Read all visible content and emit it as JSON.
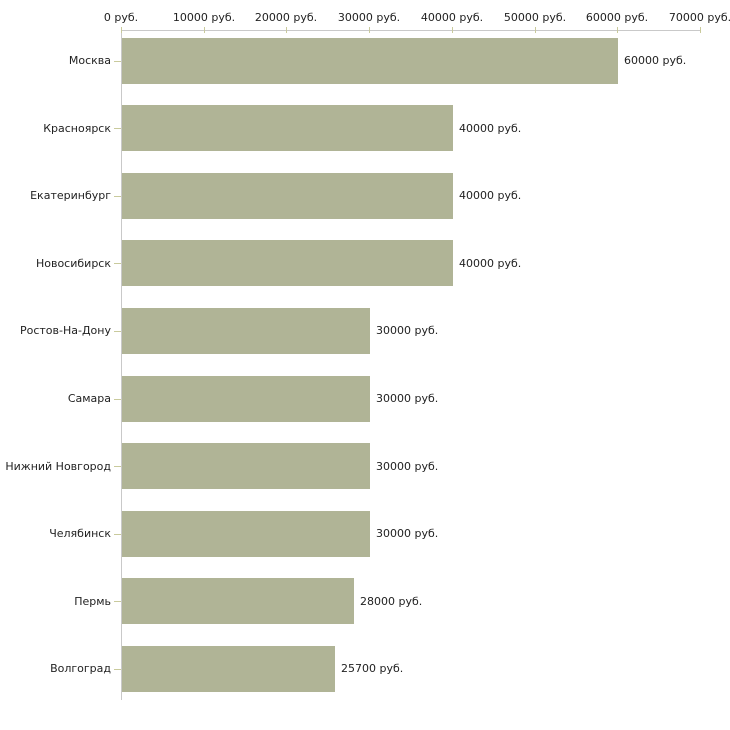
{
  "chart_data": {
    "type": "bar",
    "orientation": "horizontal",
    "title": "",
    "categories": [
      "Москва",
      "Красноярск",
      "Екатеринбург",
      "Новосибирск",
      "Ростов-На-Дону",
      "Самара",
      "Нижний Новгород",
      "Челябинск",
      "Пермь",
      "Волгоград"
    ],
    "values": [
      60000,
      40000,
      40000,
      40000,
      30000,
      30000,
      30000,
      30000,
      28000,
      25700
    ],
    "value_labels": [
      "60000 руб.",
      "40000 руб.",
      "40000 руб.",
      "40000 руб.",
      "30000 руб.",
      "30000 руб.",
      "30000 руб.",
      "30000 руб.",
      "28000 руб.",
      "25700 руб."
    ],
    "unit": "руб.",
    "x_axis": {
      "position": "top",
      "min": 0,
      "max": 70000,
      "ticks": [
        0,
        10000,
        20000,
        30000,
        40000,
        50000,
        60000,
        70000
      ],
      "tick_labels": [
        "0 руб.",
        "10000 руб.",
        "20000 руб.",
        "30000 руб.",
        "40000 руб.",
        "50000 руб.",
        "60000 руб.",
        "70000 руб."
      ]
    },
    "grid": false,
    "legend": false,
    "colors": {
      "bar": "#b0b496",
      "axis_line": "#c9c9c9",
      "tick_mark": "#c9ca9c",
      "text": "#222222",
      "background": "#ffffff"
    }
  }
}
